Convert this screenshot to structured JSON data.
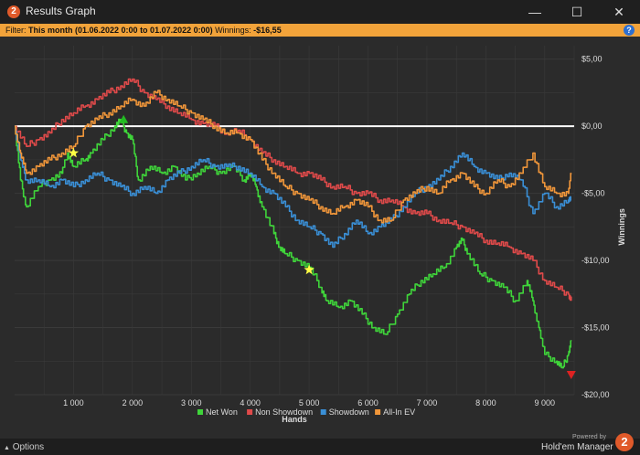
{
  "window": {
    "title": "Results Graph",
    "app_icon_glyph": "2",
    "minimize_glyph": "—",
    "maximize_glyph": "☐",
    "close_glyph": "✕"
  },
  "filter": {
    "prefix": "Filter:",
    "period": "This month (01.06.2022 0:00 to 01.07.2022 0:00)",
    "winnings_label": "Winnings:",
    "winnings_value": "-$16,55",
    "help_glyph": "?"
  },
  "footer": {
    "options_label": "Options",
    "options_glyph": "▲",
    "powered_by": "Powered by",
    "brand": "Hold'em Manager",
    "brand_logo_glyph": "2"
  },
  "colors": {
    "net_won": "#3fd43a",
    "non_showdown": "#e04a4a",
    "showdown": "#3a8fd6",
    "all_in_ev": "#f0963a",
    "zero_line": "#ffffff",
    "grid": "#3a3a3a",
    "plot_bg": "#2b2b2b",
    "text": "#dddddd",
    "filter_bar": "#f2a33a"
  },
  "chart_data": {
    "type": "line",
    "xlabel": "Hands",
    "ylabel": "Winnings",
    "xlim": [
      0,
      9500
    ],
    "ylim": [
      -20,
      6
    ],
    "x_ticks": [
      1000,
      2000,
      3000,
      4000,
      5000,
      6000,
      7000,
      8000,
      9000
    ],
    "x_tick_labels": [
      "1 000",
      "2 000",
      "3 000",
      "4 000",
      "5 000",
      "6 000",
      "7 000",
      "8 000",
      "9 000"
    ],
    "y_ticks": [
      5,
      0,
      -5,
      -10,
      -15,
      -20
    ],
    "y_tick_labels": [
      "$5,00",
      "$0,00",
      "-$5,00",
      "-$10,00",
      "-$15,00",
      "-$20,00"
    ],
    "legend_position": "bottom",
    "grid": true,
    "series": [
      {
        "name": "Net Won",
        "color": "#3fd43a",
        "x": [
          0,
          100,
          200,
          400,
          600,
          800,
          900,
          1000,
          1200,
          1300,
          1500,
          1700,
          1800,
          1900,
          2000,
          2100,
          2300,
          2500,
          2700,
          2900,
          3100,
          3300,
          3500,
          3700,
          3900,
          4000,
          4100,
          4200,
          4400,
          4500,
          4600,
          4800,
          5000,
          5200,
          5300,
          5500,
          5700,
          5900,
          6100,
          6300,
          6500,
          6700,
          6900,
          7100,
          7300,
          7500,
          7600,
          7700,
          7900,
          8100,
          8300,
          8500,
          8700,
          8800,
          8900,
          9000,
          9200,
          9300,
          9400,
          9450
        ],
        "y": [
          0,
          -4,
          -6,
          -4.5,
          -4,
          -3.5,
          -2,
          -3,
          -2.5,
          -2,
          -1,
          0,
          0.5,
          -0.5,
          -1,
          -4,
          -3,
          -3.5,
          -3,
          -4,
          -3.5,
          -3,
          -3.5,
          -3,
          -4,
          -3.5,
          -4.5,
          -6,
          -8,
          -9,
          -9.5,
          -10,
          -10.5,
          -12,
          -13,
          -13.5,
          -13,
          -14,
          -15,
          -15.5,
          -14,
          -12.5,
          -11.5,
          -11,
          -10.5,
          -9,
          -8.5,
          -9.5,
          -11,
          -11.5,
          -12,
          -13,
          -11.5,
          -13,
          -15,
          -17,
          -17.5,
          -18,
          -17,
          -16
        ]
      },
      {
        "name": "Non Showdown",
        "color": "#e04a4a",
        "x": [
          0,
          200,
          400,
          600,
          800,
          1000,
          1200,
          1400,
          1600,
          1800,
          2000,
          2200,
          2400,
          2600,
          2800,
          3000,
          3200,
          3400,
          3600,
          3800,
          4000,
          4200,
          4400,
          4600,
          4800,
          5000,
          5200,
          5400,
          5600,
          5800,
          6000,
          6200,
          6400,
          6600,
          6800,
          7000,
          7200,
          7400,
          7600,
          7800,
          8000,
          8200,
          8400,
          8600,
          8800,
          9000,
          9200,
          9400,
          9450
        ],
        "y": [
          0,
          -1.5,
          -1,
          -0.5,
          0.5,
          1,
          1.5,
          2,
          2.5,
          3,
          3.5,
          2.5,
          2,
          1.5,
          1,
          0.5,
          0.2,
          0,
          -0.5,
          -0.3,
          -1,
          -2,
          -2.5,
          -3,
          -3.5,
          -3.5,
          -4,
          -4.5,
          -4.5,
          -5,
          -5,
          -5.5,
          -5.5,
          -6,
          -6.5,
          -6.5,
          -7,
          -7.2,
          -7.5,
          -8,
          -8.5,
          -8.7,
          -9,
          -9.5,
          -10,
          -11.5,
          -12,
          -12.5,
          -13
        ]
      },
      {
        "name": "Showdown",
        "color": "#3a8fd6",
        "x": [
          0,
          100,
          200,
          400,
          600,
          800,
          1000,
          1200,
          1400,
          1600,
          1800,
          2000,
          2200,
          2400,
          2600,
          2800,
          3000,
          3200,
          3400,
          3600,
          3800,
          4000,
          4200,
          4400,
          4600,
          4800,
          5000,
          5200,
          5400,
          5600,
          5800,
          6000,
          6200,
          6400,
          6600,
          6800,
          7000,
          7200,
          7400,
          7600,
          7800,
          8000,
          8200,
          8400,
          8600,
          8800,
          9000,
          9200,
          9400,
          9450
        ],
        "y": [
          0,
          -2.5,
          -4,
          -4,
          -4.5,
          -4,
          -4.5,
          -4,
          -3.5,
          -4,
          -4.5,
          -5,
          -4.5,
          -5,
          -4,
          -3.5,
          -3,
          -2.5,
          -3,
          -3,
          -3,
          -3.5,
          -4.5,
          -5,
          -6,
          -7,
          -7.5,
          -8,
          -9,
          -8,
          -7,
          -8,
          -7.5,
          -7,
          -6,
          -5,
          -4.5,
          -4,
          -3,
          -2,
          -3,
          -3.5,
          -4,
          -3.5,
          -4,
          -6.5,
          -5,
          -6,
          -5.5,
          -5.5
        ]
      },
      {
        "name": "All-In EV",
        "color": "#f0963a",
        "x": [
          0,
          100,
          200,
          400,
          600,
          800,
          1000,
          1200,
          1400,
          1600,
          1800,
          2000,
          2200,
          2400,
          2600,
          2800,
          3000,
          3200,
          3400,
          3600,
          3800,
          4000,
          4200,
          4400,
          4600,
          4800,
          5000,
          5200,
          5400,
          5600,
          5800,
          6000,
          6200,
          6400,
          6600,
          6800,
          7000,
          7200,
          7400,
          7600,
          7800,
          8000,
          8200,
          8400,
          8600,
          8800,
          9000,
          9200,
          9400,
          9450
        ],
        "y": [
          0,
          -2,
          -3.5,
          -3,
          -2.5,
          -2,
          -1.5,
          0,
          0.5,
          1,
          1.5,
          2,
          1.5,
          2.5,
          2,
          1.5,
          1,
          0.5,
          0,
          -0.5,
          -0.5,
          -1,
          -2.5,
          -3.5,
          -4.5,
          -5,
          -5.5,
          -6,
          -6.5,
          -6,
          -5.5,
          -6,
          -7,
          -7,
          -5.5,
          -5,
          -4.5,
          -5,
          -4,
          -3.5,
          -4.5,
          -5,
          -4,
          -4.5,
          -3.5,
          -2,
          -4.5,
          -5,
          -5,
          -3.5
        ]
      }
    ],
    "markers": [
      {
        "series": "Net Won",
        "type": "star",
        "color": "#ffff44",
        "x": 1000,
        "y": -2
      },
      {
        "series": "Net Won",
        "type": "triangle-up",
        "color": "#22bb22",
        "x": 1850,
        "y": 0.5
      },
      {
        "series": "Net Won",
        "type": "star",
        "color": "#ffff44",
        "x": 5000,
        "y": -10.7
      },
      {
        "series": "Net Won",
        "type": "triangle-down",
        "color": "#dd2222",
        "x": 9450,
        "y": -18.5
      }
    ]
  }
}
